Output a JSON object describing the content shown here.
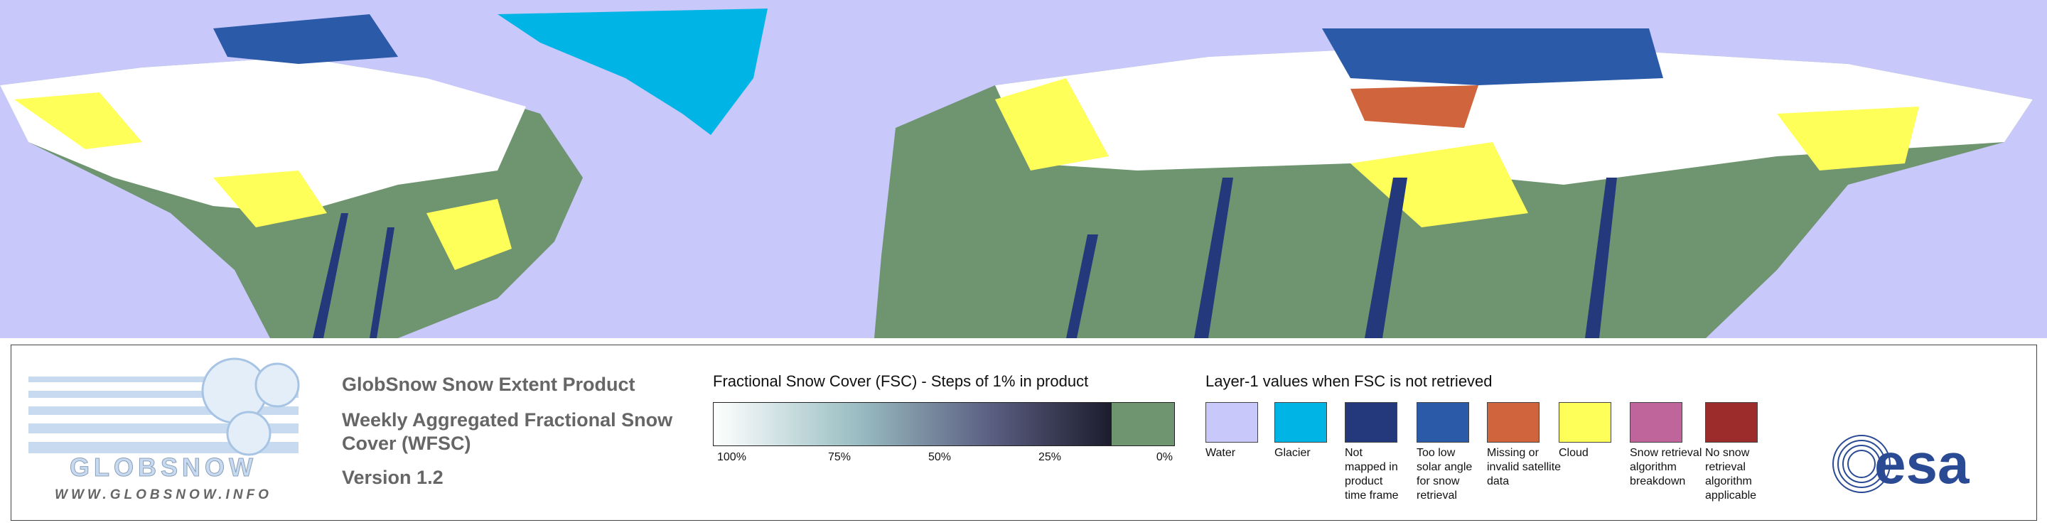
{
  "product": {
    "title": "GlobSnow Snow Extent Product",
    "subtitle_lines": [
      "Weekly Aggregated Fractional Snow",
      "Cover (WFSC)"
    ],
    "version": "Version 1.2"
  },
  "logo": {
    "name": "GLOBSNOW",
    "url": "WWW.GLOBSNOW.INFO",
    "agency": "esa"
  },
  "fsc_legend": {
    "title": "Fractional Snow Cover (FSC) - Steps of 1% in product",
    "ticks": [
      "100%",
      "75%",
      "50%",
      "25%",
      "0%"
    ]
  },
  "layer1_legend": {
    "title": "Layer-1 values when FSC is not retrieved",
    "items": [
      {
        "lines": [
          "Water"
        ],
        "color": "#c8c8fa"
      },
      {
        "lines": [
          "Glacier"
        ],
        "color": "#00b4e6"
      },
      {
        "lines": [
          "Not",
          "mapped in",
          "product",
          "time frame"
        ],
        "color": "#24387c"
      },
      {
        "lines": [
          "Too low",
          "solar angle",
          "for snow",
          "retrieval"
        ],
        "color": "#2a5aa8"
      },
      {
        "lines": [
          "Missing or",
          "invalid satellite",
          "data"
        ],
        "color": "#d0643c"
      },
      {
        "lines": [
          "Cloud"
        ],
        "color": "#ffff5a"
      },
      {
        "lines": [
          "Snow retrieval",
          "algorithm",
          "breakdown"
        ],
        "color": "#c0649c"
      },
      {
        "lines": [
          "No snow",
          "retrieval",
          "algorithm",
          "applicable"
        ],
        "color": "#9c2c2c"
      }
    ]
  }
}
